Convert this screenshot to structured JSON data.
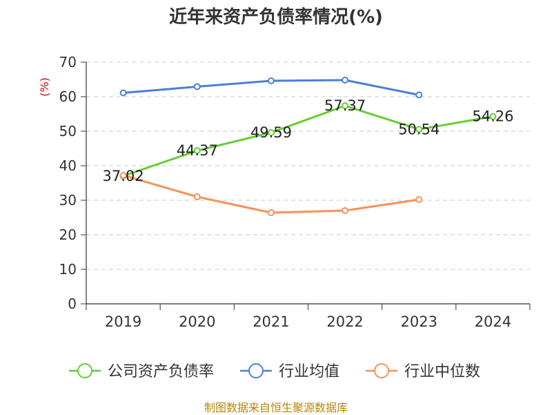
{
  "chart_data": {
    "type": "line",
    "title": "近年来资产负债率情况(%)",
    "ylabel": "(%)",
    "categories": [
      "2019",
      "2020",
      "2021",
      "2022",
      "2023",
      "2024"
    ],
    "ylim": [
      0,
      70
    ],
    "yticks": [
      0,
      10,
      20,
      30,
      40,
      50,
      60,
      70
    ],
    "grid": true,
    "legend": "bottom",
    "series": [
      {
        "name": "公司资产负债率",
        "color": "#66cc33",
        "values": [
          37.02,
          44.37,
          49.59,
          57.37,
          50.54,
          54.26
        ],
        "labels": [
          "37.02",
          "44.37",
          "49.59",
          "57.37",
          "50.54",
          "54.26"
        ]
      },
      {
        "name": "行业均值",
        "color": "#4a7fd8",
        "values": [
          61.1,
          62.9,
          64.6,
          64.8,
          60.5,
          null
        ]
      },
      {
        "name": "行业中位数",
        "color": "#f5925a",
        "values": [
          37.2,
          31.0,
          26.4,
          27.0,
          30.2,
          null
        ]
      }
    ],
    "source": "制图数据来自恒生聚源数据库"
  }
}
